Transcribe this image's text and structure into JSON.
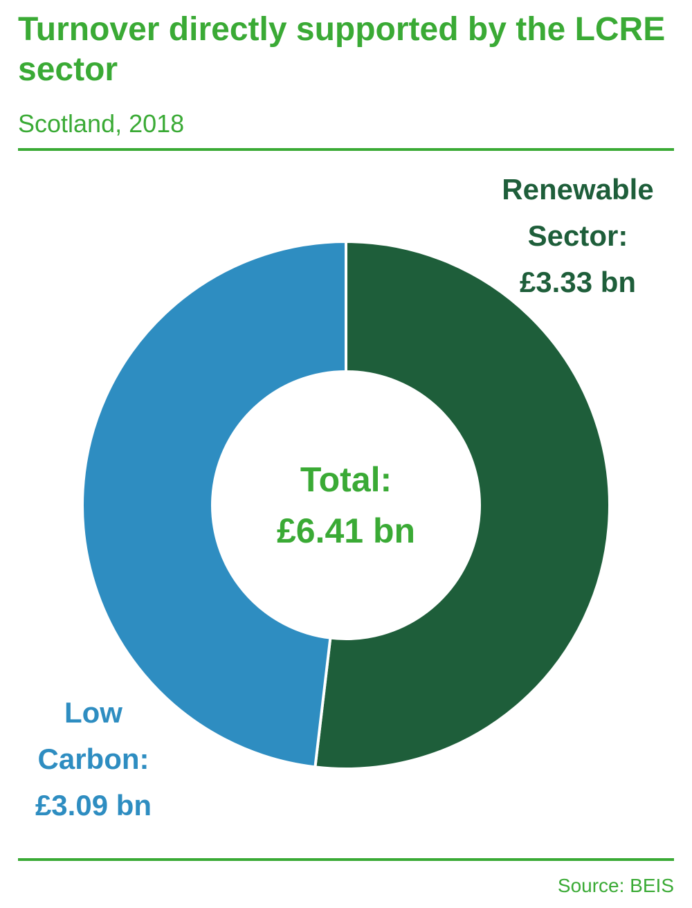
{
  "header": {
    "title": "Turnover directly supported by the LCRE sector",
    "subtitle": "Scotland, 2018"
  },
  "footer": {
    "source": "Source: BEIS"
  },
  "colors": {
    "accent_green": "#3aaa35",
    "renewable": "#1e5e3a",
    "low_carbon": "#2e8dc1"
  },
  "chart_data": {
    "type": "pie",
    "donut": true,
    "title": "Turnover directly supported by the LCRE sector",
    "subtitle": "Scotland, 2018",
    "units": "£ bn",
    "slices": [
      {
        "name": "Renewable Sector",
        "value": 3.33,
        "color": "#1e5e3a",
        "label_lines": [
          "Renewable",
          "Sector:",
          "£3.33 bn"
        ]
      },
      {
        "name": "Low Carbon",
        "value": 3.09,
        "color": "#2e8dc1",
        "label_lines": [
          "Low",
          "Carbon:",
          "£3.09 bn"
        ]
      }
    ],
    "center_label": [
      "Total:",
      "£6.41 bn"
    ],
    "total": 6.41,
    "legend": "none"
  }
}
